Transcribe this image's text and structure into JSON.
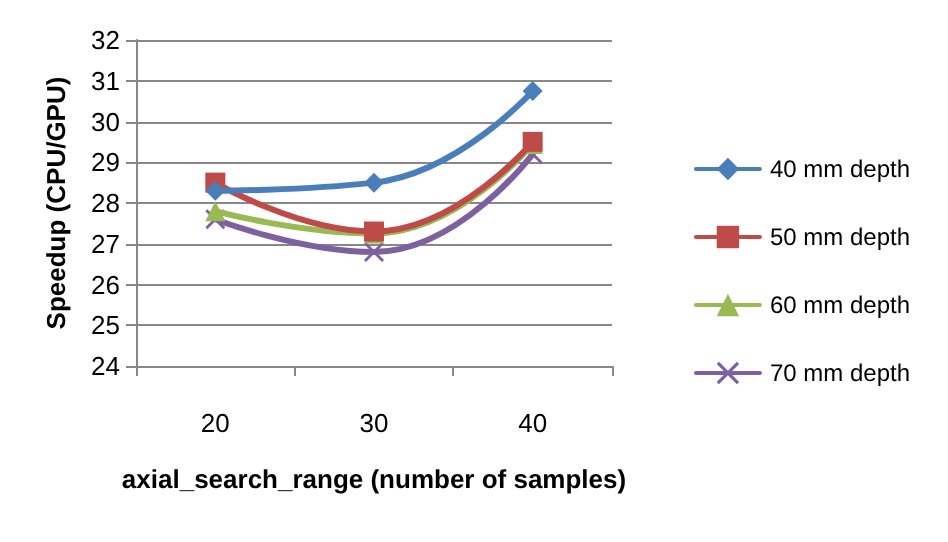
{
  "chart_data": {
    "type": "line",
    "xlabel": "axial_search_range (number of samples)",
    "ylabel": "Speedup (CPU/GPU)",
    "categories": [
      "20",
      "30",
      "40"
    ],
    "series": [
      {
        "name": "40 mm depth",
        "color": "#4a7ebb",
        "marker": "diamond",
        "values": [
          28.3,
          28.5,
          30.75
        ]
      },
      {
        "name": "50 mm depth",
        "color": "#be4b48",
        "marker": "square",
        "values": [
          28.5,
          27.3,
          29.5
        ]
      },
      {
        "name": "60 mm depth",
        "color": "#98b954",
        "marker": "triangle",
        "values": [
          27.8,
          27.25,
          29.45
        ]
      },
      {
        "name": "70 mm depth",
        "color": "#7d60a0",
        "marker": "cross",
        "values": [
          27.6,
          26.8,
          29.2
        ]
      }
    ],
    "ylim": [
      24,
      32
    ],
    "yticks": [
      24,
      25,
      26,
      27,
      28,
      29,
      30,
      31,
      32
    ],
    "grid": "y",
    "legend": "right"
  }
}
